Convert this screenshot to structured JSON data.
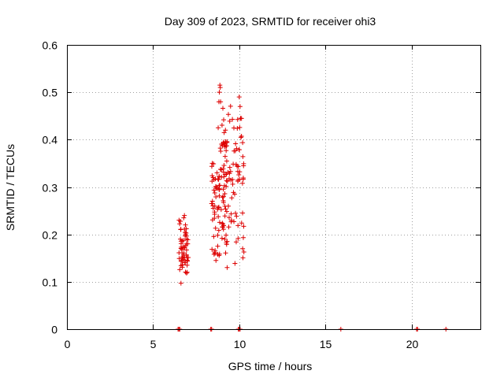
{
  "chart_data": {
    "type": "scatter",
    "title": "Day 309 of 2023, SRMTID for receiver ohi3",
    "xlabel": "GPS time / hours",
    "ylabel": "SRMTID / TECUs",
    "xlim": [
      0,
      24
    ],
    "ylim": [
      0,
      0.6
    ],
    "xticks": [
      0,
      5,
      10,
      15,
      20
    ],
    "xtick_labels": [
      "0",
      "5",
      "10",
      "15",
      "20"
    ],
    "yticks": [
      0,
      0.1,
      0.2,
      0.3,
      0.4,
      0.5,
      0.6
    ],
    "ytick_labels": [
      "0",
      "0.1",
      "0.2",
      "0.3",
      "0.4",
      "0.5",
      "0.6"
    ],
    "grid": true,
    "marker": "+",
    "series": [
      {
        "name": "SRMTID",
        "color": "#dd0000",
        "clusters": [
          {
            "x_range": [
              6.5,
              7.05
            ],
            "y_range": [
              0.1,
              0.24
            ],
            "count": 55
          },
          {
            "x_range": [
              8.4,
              9.3
            ],
            "y_range": [
              0.14,
              0.42
            ],
            "count": 80
          },
          {
            "x_range": [
              9.0,
              10.3
            ],
            "y_range": [
              0.13,
              0.49
            ],
            "count": 90
          }
        ],
        "points": [
          [
            6.62,
            0.097
          ],
          [
            6.78,
            0.235
          ],
          [
            6.82,
            0.24
          ],
          [
            6.88,
            0.22
          ],
          [
            6.95,
            0.19
          ],
          [
            6.98,
            0.12
          ],
          [
            8.4,
            0.265
          ],
          [
            8.45,
            0.265
          ],
          [
            8.6,
            0.16
          ],
          [
            8.65,
            0.145
          ],
          [
            8.78,
            0.425
          ],
          [
            8.82,
            0.48
          ],
          [
            8.85,
            0.5
          ],
          [
            8.88,
            0.515
          ],
          [
            8.9,
            0.51
          ],
          [
            8.92,
            0.48
          ],
          [
            9.1,
            0.395
          ],
          [
            9.15,
            0.385
          ],
          [
            9.2,
            0.42
          ],
          [
            9.3,
            0.13
          ],
          [
            10.0,
            0.49
          ],
          [
            10.05,
            0.47
          ],
          [
            10.08,
            0.445
          ],
          [
            10.1,
            0.405
          ],
          [
            10.2,
            0.17
          ]
        ]
      },
      {
        "name": "zero-values",
        "color": "#dd0000",
        "points": [
          [
            6.45,
            0
          ],
          [
            6.5,
            0
          ],
          [
            6.55,
            0
          ],
          [
            8.35,
            0
          ],
          [
            8.4,
            0
          ],
          [
            9.95,
            0
          ],
          [
            10.0,
            0
          ],
          [
            10.05,
            0
          ],
          [
            15.9,
            0
          ],
          [
            20.3,
            0
          ],
          [
            20.35,
            0
          ],
          [
            22.0,
            0
          ]
        ]
      }
    ]
  }
}
